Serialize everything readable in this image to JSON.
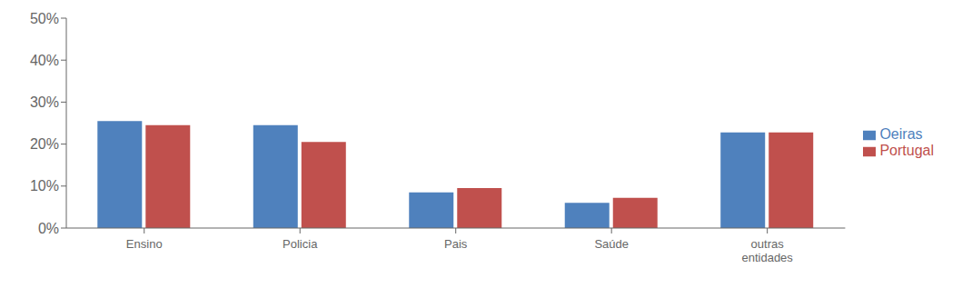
{
  "chart_data": {
    "type": "bar",
    "categories": [
      "Ensino",
      "Policia",
      "Pais",
      "Saúde",
      "outras\nentidades"
    ],
    "series": [
      {
        "name": "Oeiras",
        "color": "#4F81BD",
        "values": [
          0.255,
          0.245,
          0.085,
          0.06,
          0.228
        ]
      },
      {
        "name": "Portugal",
        "color": "#C0504D",
        "values": [
          0.245,
          0.205,
          0.095,
          0.072,
          0.228
        ]
      }
    ],
    "ylim": [
      0,
      0.5
    ],
    "yticks": [
      {
        "value": 0,
        "label": "0%"
      },
      {
        "value": 0.1,
        "label": "10%"
      },
      {
        "value": 0.2,
        "label": "20%"
      },
      {
        "value": 0.3,
        "label": "30%"
      },
      {
        "value": 0.4,
        "label": "40%"
      },
      {
        "value": 0.5,
        "label": "50%"
      }
    ],
    "grid": false,
    "legend": "right"
  }
}
